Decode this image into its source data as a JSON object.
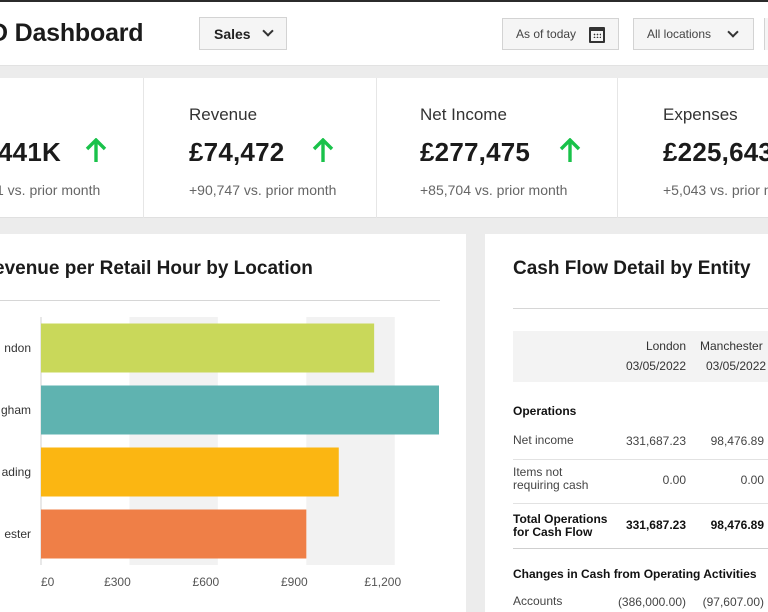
{
  "header": {
    "title": "D Dashboard",
    "department_select": "Sales",
    "date_select": "As of today",
    "location_select": "All locations"
  },
  "kpis": [
    {
      "label": "",
      "value": "441K",
      "trend": "up",
      "comparison": "1 vs. prior month"
    },
    {
      "label": "Revenue",
      "value": "£74,472",
      "trend": "up",
      "comparison": "+90,747 vs. prior month"
    },
    {
      "label": "Net Income",
      "value": "£277,475",
      "trend": "up",
      "comparison": "+85,704 vs. prior month"
    },
    {
      "label": "Expenses",
      "value": "£225,643",
      "trend": "",
      "comparison": "+5,043 vs. prior m"
    }
  ],
  "colors": {
    "trend_up": "#19c24a",
    "bar_london": "#c9d85a",
    "bar_birmingham": "#5fb3b0",
    "bar_reading": "#fbb612",
    "bar_manchester": "#ef7f47"
  },
  "chart_data": {
    "type": "bar",
    "orientation": "horizontal",
    "title": "evenue per Retail Hour by Location",
    "categories": [
      "ndon",
      "gham",
      "ading",
      "ester"
    ],
    "values": [
      1130,
      1350,
      1010,
      900
    ],
    "colors": [
      "#c9d85a",
      "#5fb3b0",
      "#fbb612",
      "#ef7f47"
    ],
    "xlim": [
      0,
      1350
    ],
    "xticks": [
      0,
      300,
      600,
      900,
      1200
    ],
    "xtick_labels": [
      "£0",
      "£300",
      "£600",
      "£900",
      "£1,200"
    ],
    "grid": "alternating-bands"
  },
  "cashflow": {
    "title": "Cash Flow Detail by Entity",
    "columns": [
      {
        "name": "London",
        "date": "03/05/2022"
      },
      {
        "name": "Manchester",
        "date": "03/05/2022"
      }
    ],
    "sections": [
      {
        "title": "Operations",
        "rows": [
          {
            "label": "Net income",
            "values": [
              "331,687.23",
              "98,476.89"
            ],
            "bold": false
          },
          {
            "label": "Items not requiring cash",
            "values": [
              "0.00",
              "0.00"
            ],
            "bold": false
          },
          {
            "label": "Total Operations for Cash Flow",
            "values": [
              "331,687.23",
              "98,476.89"
            ],
            "bold": true
          }
        ]
      },
      {
        "title": "Changes in Cash from Operating Activities",
        "rows": [
          {
            "label": "Accounts",
            "values": [
              "(386,000.00)",
              "(97,607.00)"
            ],
            "bold": false
          }
        ]
      }
    ]
  }
}
